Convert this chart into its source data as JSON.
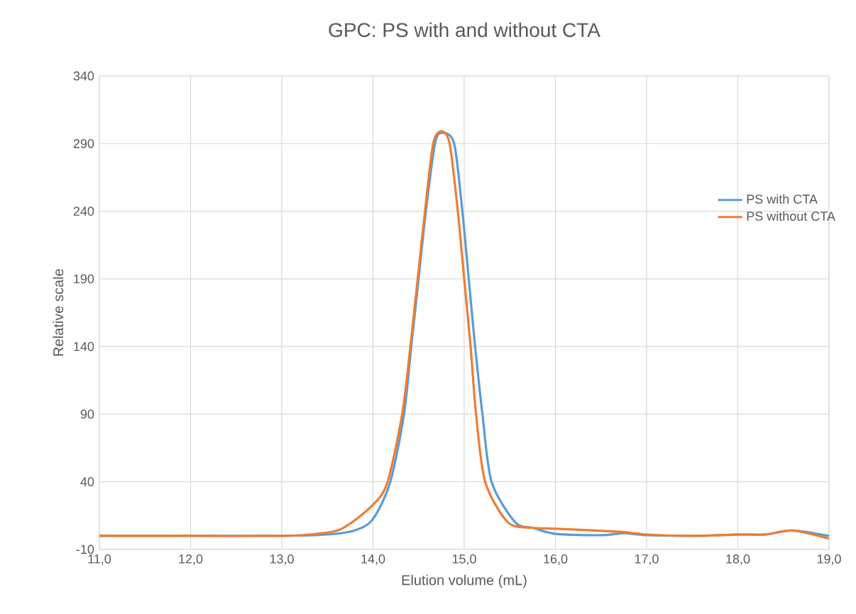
{
  "chart_data": {
    "type": "line",
    "title": "GPC: PS with and without CTA",
    "xlabel": "Elution volume (mL)",
    "ylabel": "Relative scale",
    "xlim": [
      11,
      19
    ],
    "ylim": [
      -10,
      340
    ],
    "xticks": [
      {
        "value": 11,
        "label": "11,0"
      },
      {
        "value": 12,
        "label": "12,0"
      },
      {
        "value": 13,
        "label": "13,0"
      },
      {
        "value": 14,
        "label": "14,0"
      },
      {
        "value": 15,
        "label": "15,0"
      },
      {
        "value": 16,
        "label": "16,0"
      },
      {
        "value": 17,
        "label": "17,0"
      },
      {
        "value": 18,
        "label": "18,0"
      },
      {
        "value": 19,
        "label": "19,0"
      }
    ],
    "yticks": [
      -10,
      40,
      90,
      140,
      190,
      240,
      290,
      340
    ],
    "grid": true,
    "legend": "right",
    "marker": "none",
    "line_style": "solid",
    "series": [
      {
        "name": "PS with CTA",
        "color": "#5b9bd5",
        "x": [
          11,
          12,
          13,
          13.5,
          13.8,
          14,
          14.19,
          14.34,
          14.42,
          14.5,
          14.58,
          14.68,
          14.76,
          14.89,
          14.98,
          15.05,
          15.12,
          15.2,
          15.3,
          15.56,
          15.75,
          16,
          16.5,
          16.75,
          17,
          17.5,
          18,
          18.3,
          18.6,
          19
        ],
        "values": [
          0,
          0,
          0,
          1,
          4,
          12.5,
          40,
          90,
          140,
          190,
          240,
          290,
          298,
          290,
          240,
          190,
          140,
          90,
          40,
          10,
          6,
          1.5,
          0.5,
          2,
          0.5,
          0,
          1,
          1,
          4,
          0
        ]
      },
      {
        "name": "PS without CTA",
        "color": "#ed7d31",
        "x": [
          11,
          12,
          13,
          13.3,
          13.65,
          14,
          14.16,
          14.32,
          14.41,
          14.49,
          14.57,
          14.66,
          14.75,
          14.84,
          14.93,
          15,
          15.07,
          15.13,
          15.23,
          15.48,
          15.75,
          16,
          16.7,
          17,
          17.5,
          18,
          18.3,
          18.6,
          19
        ],
        "values": [
          0,
          0,
          0,
          1,
          5,
          23,
          40,
          90,
          140,
          190,
          240,
          290,
          299,
          290,
          240,
          190,
          140,
          90,
          40,
          10,
          6,
          5.3,
          3,
          1,
          0,
          1,
          1,
          4,
          -2
        ]
      }
    ]
  }
}
